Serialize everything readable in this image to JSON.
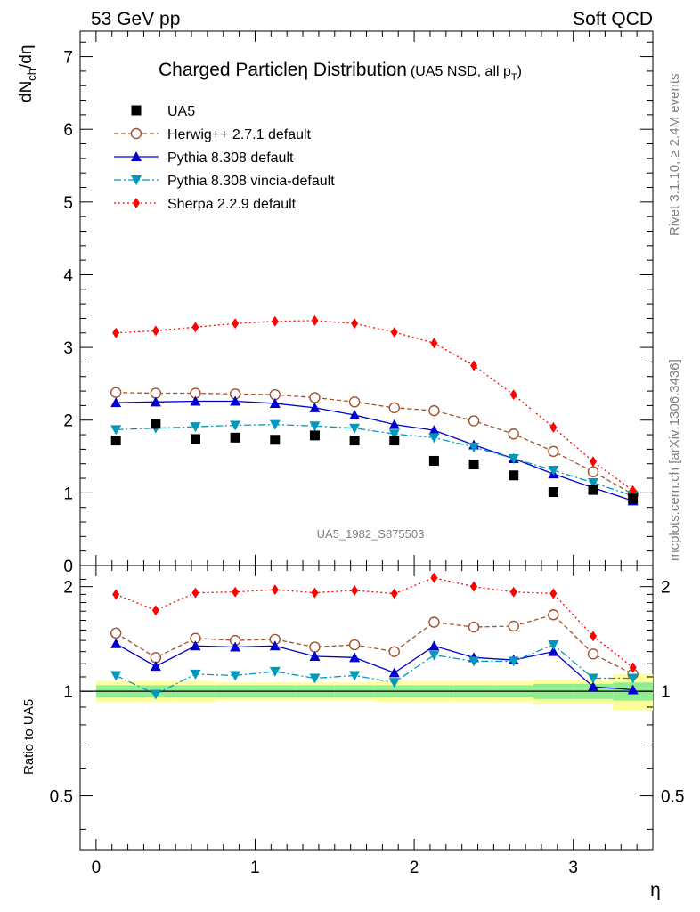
{
  "header": {
    "left": "53 GeV pp",
    "right": "Soft QCD"
  },
  "side": {
    "rivet": "Rivet 3.1.10, ≥ 2.4M events",
    "mcplots": "mcplots.cern.ch [arXiv:1306.3436]"
  },
  "chart_data": {
    "type": "line",
    "title": "Charged Particleη Distribution",
    "title_note": "(UA5 NSD, all p",
    "title_note_sub": "T",
    "title_note_end": ")",
    "watermark": "UA5_1982_S875503",
    "xlabel": "η",
    "ylabel_main": "dN",
    "ylabel_main_sub": "ch",
    "ylabel_main_end": "/dη",
    "ylabel_ratio": "Ratio to UA5",
    "xlim": [
      -0.1,
      3.5
    ],
    "ylim_main": [
      0,
      7.35
    ],
    "ylim_ratio": [
      0.35,
      2.3
    ],
    "ratio_scale": "log",
    "x_ticks": [
      "0",
      "1",
      "2",
      "3"
    ],
    "y_ticks_main": [
      "0",
      "1",
      "2",
      "3",
      "4",
      "5",
      "6",
      "7"
    ],
    "y_ticks_ratio": [
      "0.5",
      "1",
      "2"
    ],
    "x": [
      0.125,
      0.375,
      0.625,
      0.875,
      1.125,
      1.375,
      1.625,
      1.875,
      2.125,
      2.375,
      2.625,
      2.875,
      3.125,
      3.375
    ],
    "data": {
      "name": "UA5",
      "values": [
        1.72,
        1.95,
        1.74,
        1.76,
        1.73,
        1.79,
        1.72,
        1.72,
        1.44,
        1.39,
        1.24,
        1.01,
        1.04,
        0.92
      ]
    },
    "series": [
      {
        "name": "Herwig++ 2.7.1 default",
        "color": "#a0522d",
        "values": [
          2.38,
          2.37,
          2.37,
          2.36,
          2.35,
          2.31,
          2.25,
          2.17,
          2.13,
          1.99,
          1.81,
          1.57,
          1.29,
          0.98
        ],
        "ratio": [
          1.47,
          1.25,
          1.42,
          1.4,
          1.41,
          1.34,
          1.36,
          1.3,
          1.58,
          1.53,
          1.54,
          1.66,
          1.28,
          1.12
        ]
      },
      {
        "name": "Pythia 8.308 default",
        "color": "#0000cd",
        "values": [
          2.24,
          2.25,
          2.26,
          2.26,
          2.23,
          2.17,
          2.07,
          1.94,
          1.86,
          1.66,
          1.47,
          1.26,
          1.07,
          0.89
        ],
        "ratio": [
          1.37,
          1.18,
          1.35,
          1.34,
          1.35,
          1.26,
          1.25,
          1.13,
          1.35,
          1.25,
          1.23,
          1.3,
          1.03,
          1.01
        ]
      },
      {
        "name": "Pythia 8.308 vincia-default",
        "color": "#0099bb",
        "values": [
          1.87,
          1.89,
          1.91,
          1.93,
          1.94,
          1.92,
          1.89,
          1.81,
          1.76,
          1.63,
          1.47,
          1.31,
          1.14,
          0.96
        ],
        "ratio": [
          1.11,
          0.98,
          1.12,
          1.11,
          1.14,
          1.09,
          1.11,
          1.06,
          1.27,
          1.22,
          1.22,
          1.36,
          1.09,
          1.09
        ]
      },
      {
        "name": "Sherpa 2.2.9 default",
        "color": "#ff0000",
        "values": [
          3.2,
          3.23,
          3.28,
          3.33,
          3.36,
          3.37,
          3.33,
          3.21,
          3.06,
          2.75,
          2.35,
          1.9,
          1.43,
          1.03
        ],
        "ratio": [
          1.9,
          1.71,
          1.92,
          1.93,
          1.96,
          1.92,
          1.95,
          1.91,
          2.12,
          2.0,
          1.93,
          1.91,
          1.44,
          1.17
        ]
      }
    ],
    "band": {
      "inner": [
        0.04,
        0.04,
        0.04,
        0.04,
        0.04,
        0.04,
        0.04,
        0.04,
        0.04,
        0.04,
        0.04,
        0.05,
        0.05,
        0.06
      ],
      "outer": [
        0.07,
        0.07,
        0.07,
        0.06,
        0.06,
        0.06,
        0.06,
        0.07,
        0.07,
        0.07,
        0.07,
        0.08,
        0.08,
        0.12
      ]
    }
  }
}
